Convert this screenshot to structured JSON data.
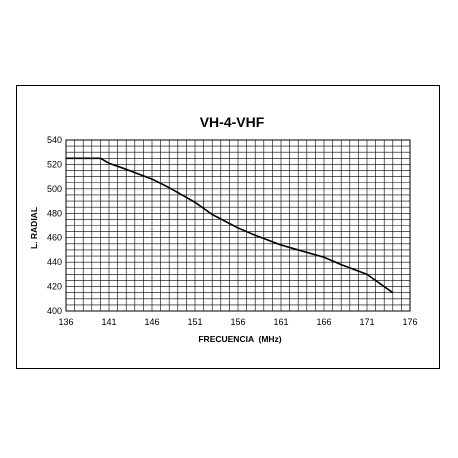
{
  "chart_data": {
    "type": "line",
    "title": "VH-4-VHF",
    "xlabel": "FRECUENCIA  (MHz)",
    "ylabel": "L. RADIAL",
    "xlim": [
      136,
      176
    ],
    "ylim": [
      400,
      540
    ],
    "x_ticks": [
      "136",
      "141",
      "146",
      "151",
      "156",
      "161",
      "166",
      "171",
      "176"
    ],
    "y_ticks": [
      "540",
      "520",
      "500",
      "480",
      "460",
      "440",
      "420",
      "400"
    ],
    "grid": true,
    "x_grid_step": 1,
    "y_grid_step": 5,
    "series": [
      {
        "color": "#000000",
        "x": [
          136,
          140,
          141,
          143,
          146,
          148,
          151,
          153,
          156,
          158,
          161,
          163,
          166,
          168,
          171,
          174
        ],
        "y": [
          525,
          525,
          521,
          516,
          508,
          501,
          489,
          479,
          468,
          462,
          454,
          450,
          444,
          438,
          430,
          415
        ]
      }
    ]
  }
}
